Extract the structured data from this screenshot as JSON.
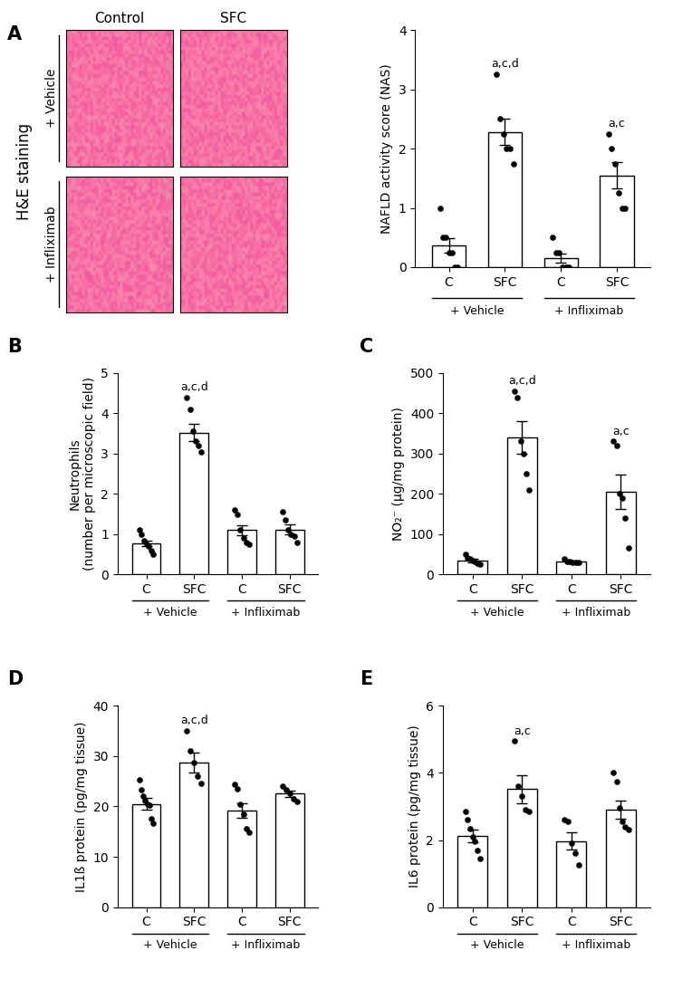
{
  "images": {
    "title": "A",
    "row_title": "H&E staining",
    "columns": [
      "Control",
      "SFC"
    ],
    "rows": [
      "+ Vehicle",
      "+ Infliximab"
    ]
  },
  "chart_data": [
    {
      "type": "bar",
      "title": "A",
      "y_label": "NAFLD activity score (NAS)",
      "categories": [
        "C",
        "SFC",
        "C",
        "SFC"
      ],
      "group_labels": [
        "+ Vehicle",
        "+ Infliximab"
      ],
      "values": [
        0.37,
        2.28,
        0.15,
        1.55
      ],
      "errors": [
        0.12,
        0.22,
        0.08,
        0.22
      ],
      "points": [
        [
          1.0,
          0.5,
          0.5,
          0.25,
          0.25,
          0.0,
          0.0
        ],
        [
          3.25,
          2.5,
          2.25,
          2.0,
          2.0,
          1.75
        ],
        [
          0.5,
          0.25,
          0.25,
          0.0,
          0.0,
          0.0
        ],
        [
          2.25,
          2.0,
          1.75,
          1.25,
          1.0,
          1.0
        ]
      ],
      "annotations": [
        null,
        "a,c,d",
        null,
        "a,c"
      ],
      "color": "#ffffff",
      "ylim": [
        0,
        4
      ],
      "yticks": [
        0,
        1,
        2,
        3,
        4
      ]
    },
    {
      "type": "bar",
      "title": "B",
      "y_label": "Neutrophils\n(number per microscopic field)",
      "categories": [
        "C",
        "SFC",
        "C",
        "SFC"
      ],
      "group_labels": [
        "+ Vehicle",
        "+ Infliximab"
      ],
      "values": [
        0.78,
        3.52,
        1.1,
        1.12
      ],
      "errors": [
        0.07,
        0.22,
        0.12,
        0.12
      ],
      "points": [
        [
          1.12,
          1.0,
          0.85,
          0.75,
          0.7,
          0.6,
          0.5
        ],
        [
          4.4,
          4.1,
          3.55,
          3.3,
          3.2,
          3.05
        ],
        [
          1.6,
          1.5,
          1.1,
          0.9,
          0.8,
          0.75
        ],
        [
          1.55,
          1.35,
          1.1,
          1.0,
          0.95,
          0.8
        ]
      ],
      "annotations": [
        null,
        "a,c,d",
        null,
        null
      ],
      "color": "#ffffff",
      "ylim": [
        0,
        5
      ],
      "yticks": [
        0,
        1,
        2,
        3,
        4,
        5
      ]
    },
    {
      "type": "bar",
      "title": "C",
      "y_label": "NO₂⁻ (µg/mg protein)",
      "categories": [
        "C",
        "SFC",
        "C",
        "SFC"
      ],
      "group_labels": [
        "+ Vehicle",
        "+ Infliximab"
      ],
      "values": [
        35,
        340,
        32,
        205
      ],
      "errors": [
        4,
        40,
        2,
        42
      ],
      "points": [
        [
          50,
          42,
          38,
          35,
          32,
          28,
          25
        ],
        [
          455,
          440,
          330,
          300,
          250,
          210
        ],
        [
          38,
          33,
          32,
          31,
          30,
          29
        ],
        [
          330,
          320,
          200,
          190,
          140,
          65
        ]
      ],
      "annotations": [
        null,
        "a,c,d",
        null,
        "a,c"
      ],
      "color": "#ffffff",
      "ylim": [
        0,
        500
      ],
      "yticks": [
        0,
        100,
        200,
        300,
        400,
        500
      ]
    },
    {
      "type": "bar",
      "title": "D",
      "y_label": "IL1ß protein (pg/mg tissue)",
      "categories": [
        "C",
        "SFC",
        "C",
        "SFC"
      ],
      "group_labels": [
        "+ Vehicle",
        "+ Infliximab"
      ],
      "values": [
        20.5,
        28.7,
        19.2,
        22.5
      ],
      "errors": [
        1.2,
        2.0,
        1.5,
        0.6
      ],
      "points": [
        [
          25.2,
          23.3,
          22.0,
          21.2,
          20.5,
          20.2,
          17.5,
          16.7
        ],
        [
          35,
          31,
          28.7,
          26,
          24.5
        ],
        [
          24.3,
          23.5,
          20.5,
          18.5,
          15.5,
          14.8
        ],
        [
          24,
          23.3,
          22.5,
          21.5,
          21.0
        ]
      ],
      "annotations": [
        null,
        "a,c,d",
        null,
        null
      ],
      "color": "#ffffff",
      "ylim": [
        0,
        40
      ],
      "yticks": [
        0,
        10,
        20,
        30,
        40
      ]
    },
    {
      "type": "bar",
      "title": "E",
      "y_label": "IL6 protein (pg/mg tissue)",
      "categories": [
        "C",
        "SFC",
        "C",
        "SFC"
      ],
      "group_labels": [
        "+ Vehicle",
        "+ Infliximab"
      ],
      "values": [
        2.12,
        3.52,
        1.97,
        2.9
      ],
      "errors": [
        0.18,
        0.42,
        0.25,
        0.28
      ],
      "points": [
        [
          2.85,
          2.6,
          2.35,
          2.1,
          1.95,
          1.7,
          1.45
        ],
        [
          4.95,
          3.6,
          3.3,
          2.9,
          2.85
        ],
        [
          2.6,
          2.55,
          1.9,
          1.6,
          1.25
        ],
        [
          4.0,
          3.75,
          2.95,
          2.55,
          2.4,
          2.3
        ]
      ],
      "annotations": [
        null,
        "a,c",
        null,
        null
      ],
      "color": "#ffffff",
      "ylim": [
        0,
        6
      ],
      "yticks": [
        0,
        2,
        4,
        6
      ]
    }
  ]
}
